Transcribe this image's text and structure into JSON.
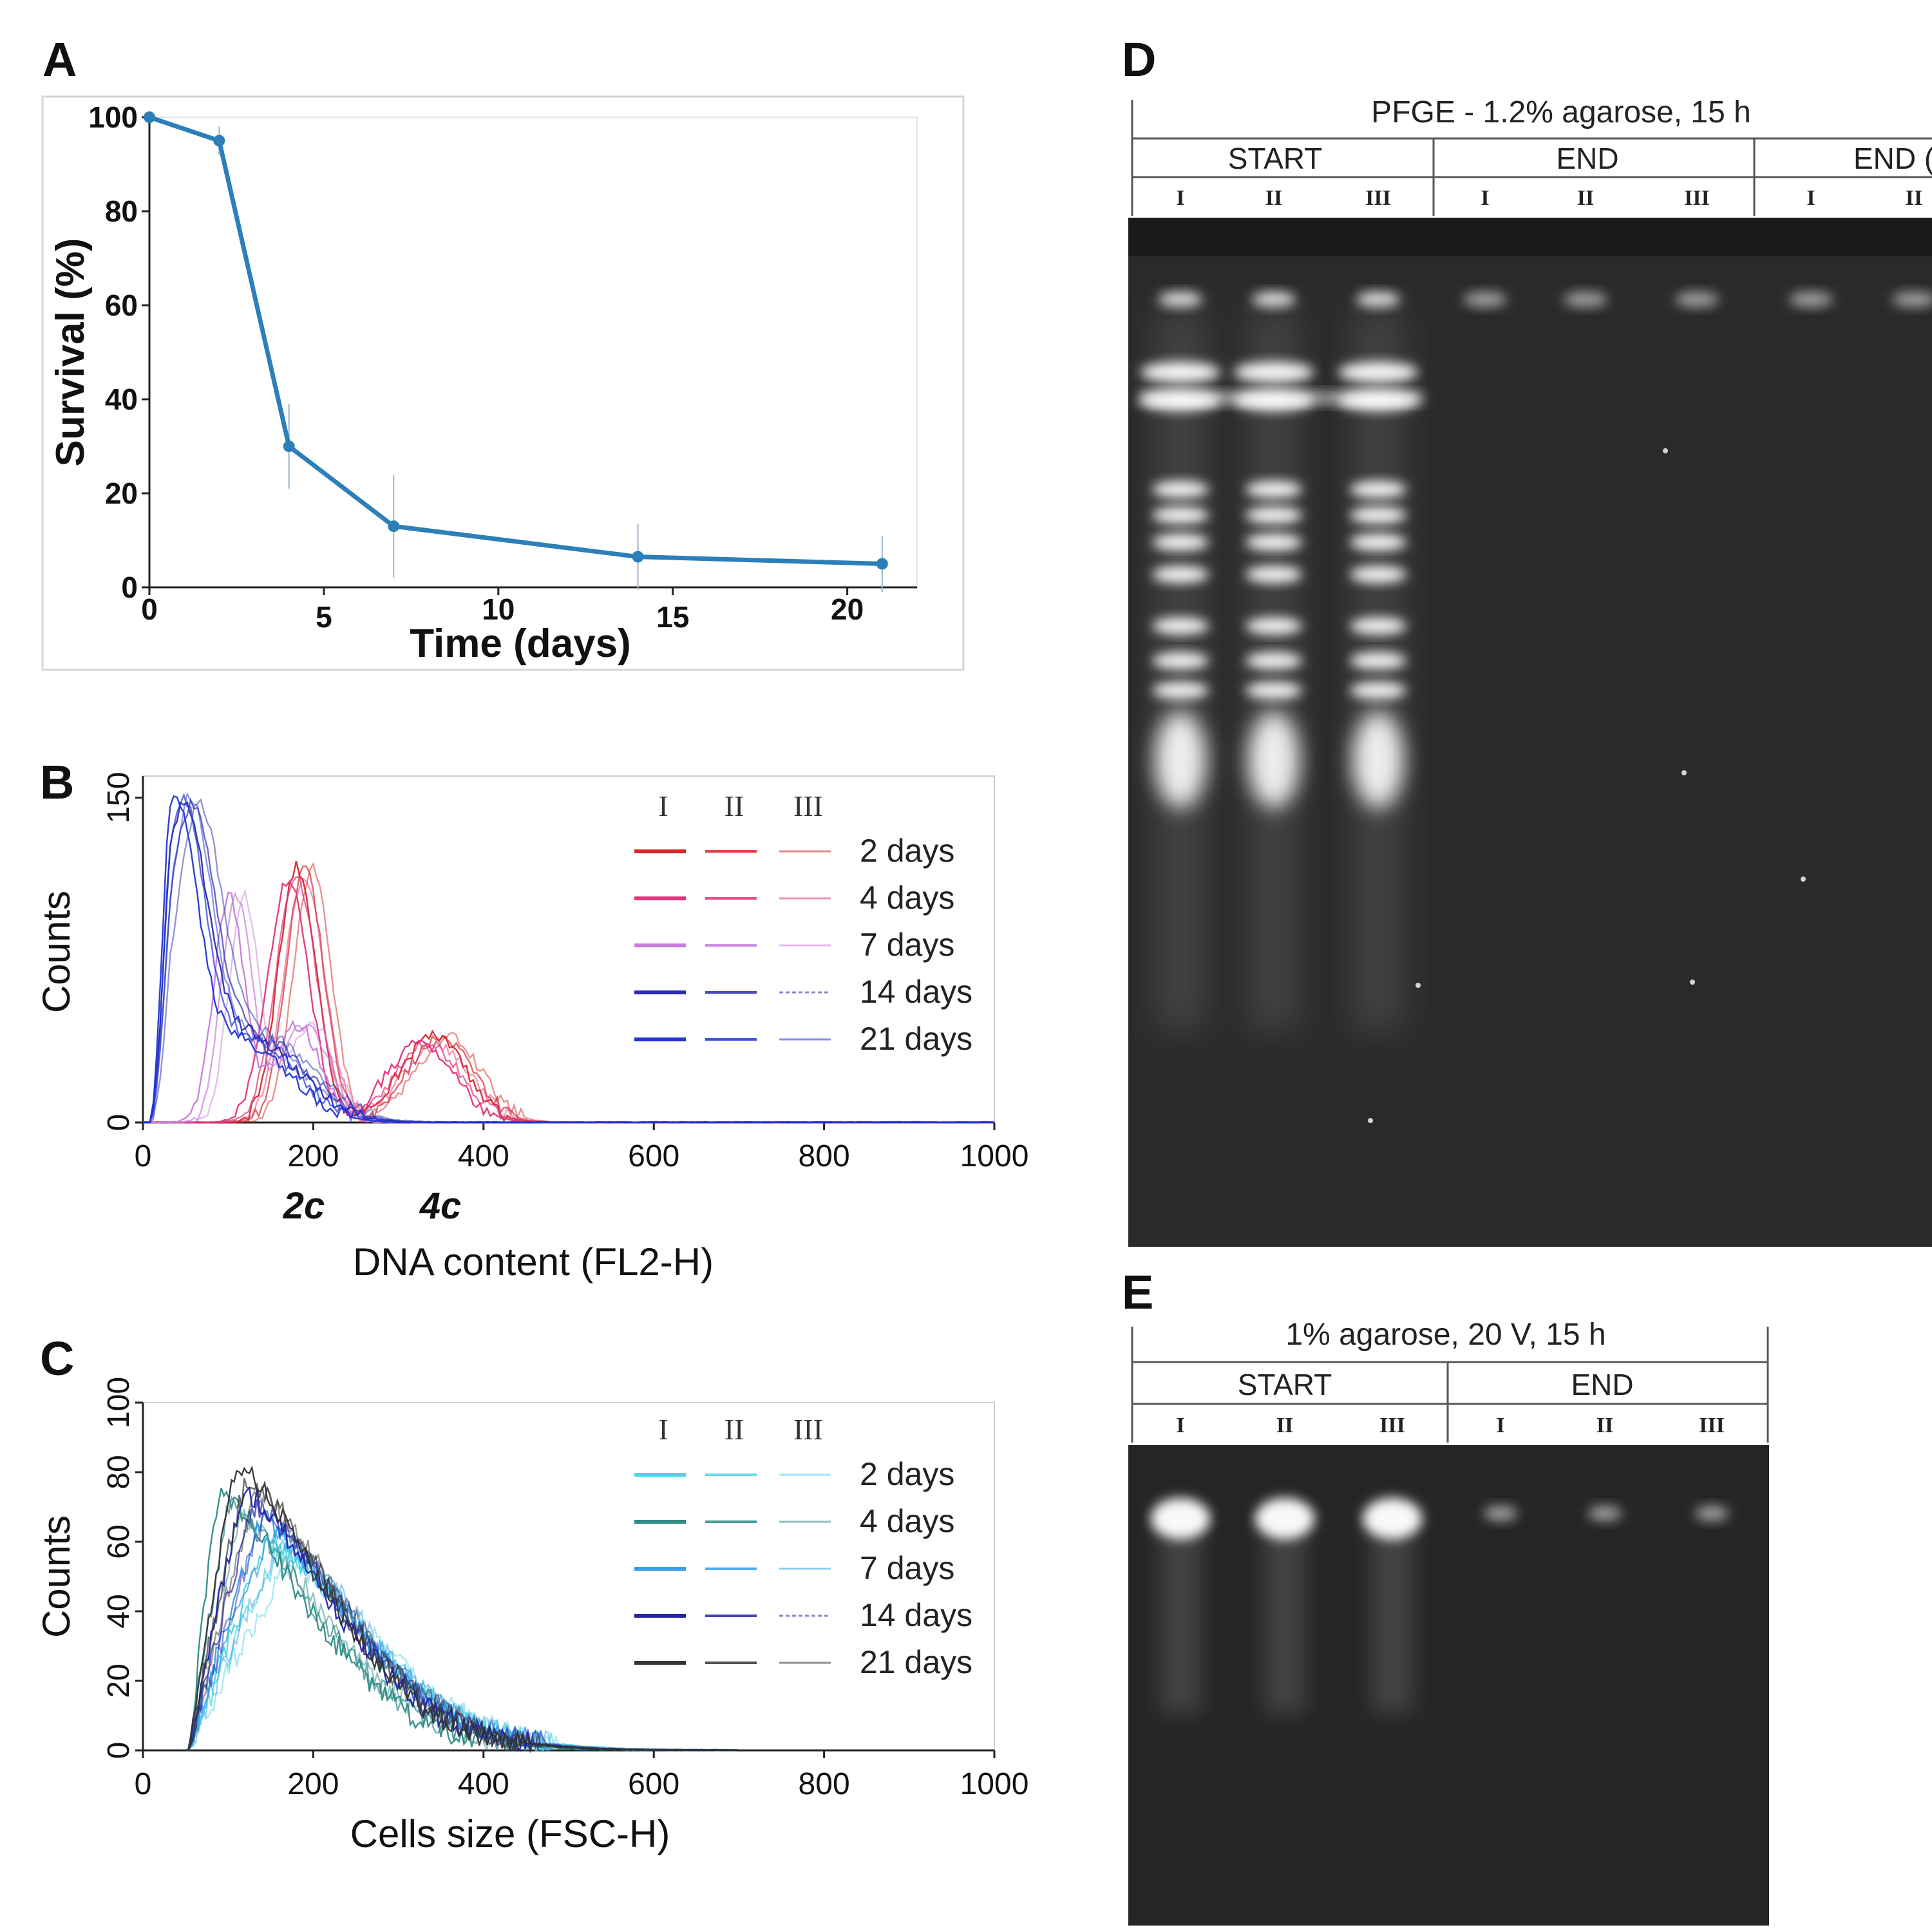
{
  "panels": {
    "A": "A",
    "B": "B",
    "C": "C",
    "D": "D",
    "E": "E"
  },
  "chart_data": [
    {
      "panel": "A",
      "type": "line",
      "xlabel": "Time (days)",
      "ylabel": "Survival (%)",
      "xlim": [
        0,
        22
      ],
      "ylim": [
        0,
        100
      ],
      "xticks": [
        "0",
        "5",
        "10",
        "15",
        "20"
      ],
      "yticks": [
        "0",
        "20",
        "40",
        "60",
        "80",
        "100"
      ],
      "x": [
        0,
        2,
        4,
        7,
        14,
        21
      ],
      "y": [
        100,
        95,
        30,
        13,
        6.5,
        5
      ],
      "error": [
        0,
        3,
        9,
        11,
        7,
        6
      ],
      "color": "#2c7fb8",
      "grid": false
    },
    {
      "panel": "B",
      "type": "line",
      "xlabel": "DNA content (FL2-H)",
      "ylabel": "Counts",
      "xlim": [
        0,
        1000
      ],
      "ylim": [
        0,
        160
      ],
      "xticks": [
        "0",
        "200",
        "400",
        "600",
        "800",
        "1000"
      ],
      "yticks": [
        "0",
        "150"
      ],
      "annotations": [
        {
          "text": "2c",
          "x": 200
        },
        {
          "text": "4c",
          "x": 360
        }
      ],
      "legend_columns": [
        "I",
        "II",
        "III"
      ],
      "legend_rows": [
        "2 days",
        "4 days",
        "7 days",
        "14 days",
        "21 days"
      ],
      "legend_colors": [
        "#d62728",
        "#e0357a",
        "#c77ddb",
        "#2b2bb0",
        "#1f35d6"
      ],
      "series": [
        {
          "name": "2 days",
          "color": "#d62728",
          "peaks": [
            {
              "mu": 190,
              "sd": 22,
              "h": 118
            },
            {
              "mu": 350,
              "sd": 38,
              "h": 40
            }
          ]
        },
        {
          "name": "4 days",
          "color": "#e0357a",
          "peaks": [
            {
              "mu": 180,
              "sd": 24,
              "h": 112
            },
            {
              "mu": 335,
              "sd": 40,
              "h": 36
            }
          ]
        },
        {
          "name": "7 days",
          "color": "#c77ddb",
          "peaks": [
            {
              "mu": 110,
              "sd": 18,
              "h": 104
            },
            {
              "mu": 190,
              "sd": 28,
              "h": 45
            }
          ]
        },
        {
          "name": "14 days",
          "color": "#2b2bb0",
          "peaks": [
            {
              "mu": 55,
              "sd": 28,
              "h": 128
            },
            {
              "mu": 130,
              "sd": 60,
              "h": 40
            }
          ]
        },
        {
          "name": "21 days",
          "color": "#1f35d6",
          "peaks": [
            {
              "mu": 45,
              "sd": 26,
              "h": 134
            },
            {
              "mu": 120,
              "sd": 58,
              "h": 38
            }
          ]
        }
      ],
      "grid": false
    },
    {
      "panel": "C",
      "type": "line",
      "xlabel": "Cells size (FSC-H)",
      "ylabel": "Counts",
      "xlim": [
        0,
        1000
      ],
      "ylim": [
        0,
        100
      ],
      "xticks": [
        "0",
        "200",
        "400",
        "600",
        "800",
        "1000"
      ],
      "yticks": [
        "0",
        "20",
        "40",
        "60",
        "80",
        "100"
      ],
      "legend_columns": [
        "I",
        "II",
        "III"
      ],
      "legend_rows": [
        "2 days",
        "4 days",
        "7 days",
        "14 days",
        "21 days"
      ],
      "legend_colors": [
        "#4dd6e6",
        "#2e8b87",
        "#3a9ee8",
        "#2323a8",
        "#333333"
      ],
      "series": [
        {
          "name": "2 days",
          "color": "#4dd6e6",
          "mode": 160,
          "h": 60
        },
        {
          "name": "4 days",
          "color": "#2e8b87",
          "mode": 100,
          "h": 74
        },
        {
          "name": "7 days",
          "color": "#3a9ee8",
          "mode": 150,
          "h": 66
        },
        {
          "name": "14 days",
          "color": "#2323a8",
          "mode": 130,
          "h": 74
        },
        {
          "name": "21 days",
          "color": "#333333",
          "mode": 120,
          "h": 82
        }
      ],
      "grid": false
    }
  ],
  "gel_D": {
    "title": "PFGE - 1.2% agarose, 15 h",
    "groups": [
      "START",
      "END",
      "END ("
    ],
    "lanes": [
      "I",
      "II",
      "III",
      "I",
      "II",
      "III",
      "I",
      "II"
    ]
  },
  "gel_E": {
    "title": "1% agarose, 20 V, 15 h",
    "groups": [
      "START",
      "END"
    ],
    "lanes": [
      "I",
      "II",
      "III",
      "I",
      "II",
      "III"
    ]
  }
}
